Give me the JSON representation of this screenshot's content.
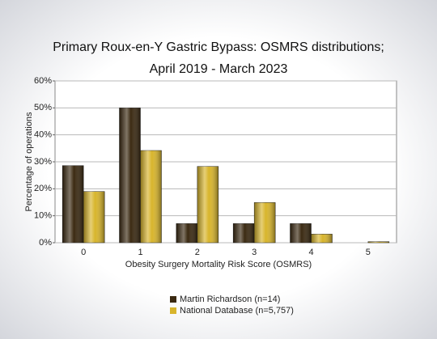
{
  "chart_data": {
    "type": "bar",
    "title": [
      "Primary Roux-en-Y Gastric Bypass: OSMRS distributions;",
      "April 2019 - March 2023"
    ],
    "x_label": "Obesity Surgery Mortality Risk Score (OSMRS)",
    "y_label": "Percentage of operations",
    "categories": [
      "0",
      "1",
      "2",
      "3",
      "4",
      "5"
    ],
    "series": [
      {
        "name": "Martin Richardson (n=14)",
        "color": "#3b2a12",
        "values": [
          28.6,
          50,
          7.1,
          7.1,
          7.1,
          0
        ]
      },
      {
        "name": "National Database (n=5,757)",
        "color": "#d8b52c",
        "values": [
          19,
          34.2,
          28.3,
          14.9,
          3.2,
          0.4
        ]
      }
    ],
    "ylim": [
      0,
      60
    ],
    "yticks": [
      {
        "value": 0,
        "label": "0%"
      },
      {
        "value": 10,
        "label": "10%"
      },
      {
        "value": 20,
        "label": "20%"
      },
      {
        "value": 30,
        "label": "30%"
      },
      {
        "value": 40,
        "label": "40%"
      },
      {
        "value": 50,
        "label": "50%"
      },
      {
        "value": 60,
        "label": "60%"
      }
    ],
    "grid": true,
    "legend": "bottom"
  }
}
